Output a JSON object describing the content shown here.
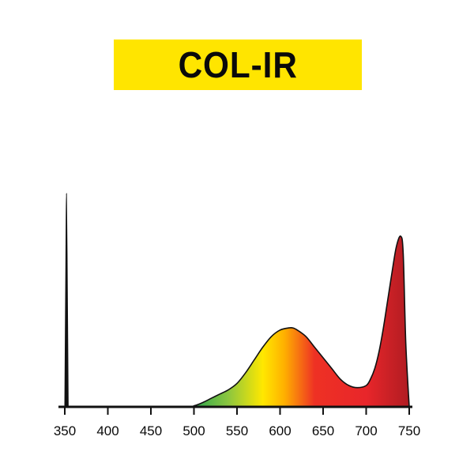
{
  "title": "COL-IR",
  "colors": {
    "title_background": "#FFE500",
    "title_text": "#0a0a0a",
    "axis": "#111111",
    "outline": "#111111",
    "gradient_stops": [
      {
        "nm": 500,
        "color": "#2fa84f"
      },
      {
        "nm": 540,
        "color": "#8cc63f"
      },
      {
        "nm": 580,
        "color": "#ffe800"
      },
      {
        "nm": 605,
        "color": "#ffb000"
      },
      {
        "nm": 640,
        "color": "#ee3124"
      },
      {
        "nm": 700,
        "color": "#e8262a"
      },
      {
        "nm": 750,
        "color": "#b01c22"
      }
    ]
  },
  "chart_data": {
    "type": "area",
    "title": "COL-IR",
    "xlabel": "",
    "ylabel": "",
    "xlim": [
      350,
      750
    ],
    "ylim": [
      0,
      1
    ],
    "x_ticks": [
      350,
      400,
      450,
      500,
      550,
      600,
      650,
      700,
      750
    ],
    "grid": false,
    "series": [
      {
        "x": [
          350,
          490,
          500,
          510,
          520,
          530,
          540,
          550,
          560,
          570,
          580,
          590,
          600,
          610,
          615,
          620,
          630,
          640,
          650,
          660,
          670,
          680,
          690,
          700,
          705,
          710,
          715,
          720,
          725,
          730,
          735,
          740,
          743,
          746,
          750
        ],
        "y": [
          0.0,
          0.0,
          0.005,
          0.02,
          0.04,
          0.06,
          0.08,
          0.11,
          0.16,
          0.22,
          0.28,
          0.33,
          0.36,
          0.37,
          0.37,
          0.36,
          0.33,
          0.28,
          0.23,
          0.18,
          0.13,
          0.1,
          0.09,
          0.1,
          0.13,
          0.18,
          0.26,
          0.37,
          0.5,
          0.63,
          0.75,
          0.8,
          0.72,
          0.3,
          0.0
        ]
      },
      {
        "x": [
          350,
          351,
          352,
          353,
          354
        ],
        "y": [
          0.0,
          0.55,
          1.0,
          0.55,
          0.0
        ]
      }
    ]
  }
}
